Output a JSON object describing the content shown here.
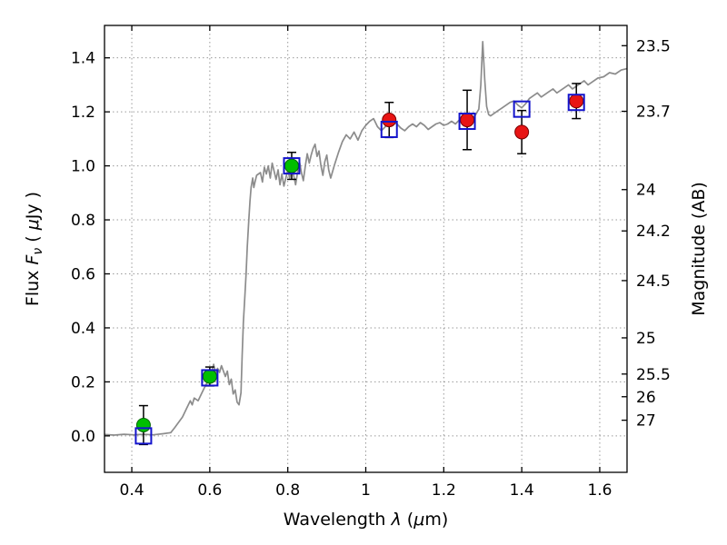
{
  "chart_data": {
    "type": "line",
    "title": "",
    "xlabel_parts": [
      {
        "text": "Wavelength  ",
        "italic": false
      },
      {
        "text": "λ",
        "italic": true
      },
      {
        "text": " (",
        "italic": false
      },
      {
        "text": "μ",
        "italic": true
      },
      {
        "text": "m)",
        "italic": false
      }
    ],
    "ylabel_left_parts": [
      {
        "text": "Flux  ",
        "italic": false
      },
      {
        "text": "F",
        "italic": true
      },
      {
        "text": "ν",
        "italic": true,
        "sub": true
      },
      {
        "text": "  ( ",
        "italic": false
      },
      {
        "text": "μ",
        "italic": true
      },
      {
        "text": "Jy )",
        "italic": false
      }
    ],
    "ylabel_right": "Magnitude (AB)",
    "xlim": [
      0.33,
      1.67
    ],
    "ylim": [
      -0.135,
      1.52
    ],
    "grid": true,
    "x_ticks": [
      {
        "v": 0.4,
        "label": "0.4"
      },
      {
        "v": 0.6,
        "label": "0.6"
      },
      {
        "v": 0.8,
        "label": "0.8"
      },
      {
        "v": 1.0,
        "label": "1"
      },
      {
        "v": 1.2,
        "label": "1.2"
      },
      {
        "v": 1.4,
        "label": "1.4"
      },
      {
        "v": 1.6,
        "label": "1.6"
      }
    ],
    "y_ticks_left": [
      {
        "v": 0.0,
        "label": "0.0"
      },
      {
        "v": 0.2,
        "label": "0.2"
      },
      {
        "v": 0.4,
        "label": "0.4"
      },
      {
        "v": 0.6,
        "label": "0.6"
      },
      {
        "v": 0.8,
        "label": "0.8"
      },
      {
        "v": 1.0,
        "label": "1.0"
      },
      {
        "v": 1.2,
        "label": "1.2"
      },
      {
        "v": 1.4,
        "label": "1.4"
      }
    ],
    "y_ticks_right": [
      {
        "label": "23.5",
        "flux": 1.445
      },
      {
        "label": "23.7",
        "flux": 1.202
      },
      {
        "label": "24",
        "flux": 0.912
      },
      {
        "label": "24.2",
        "flux": 0.759
      },
      {
        "label": "24.5",
        "flux": 0.575
      },
      {
        "label": "25",
        "flux": 0.363
      },
      {
        "label": "25.5",
        "flux": 0.229
      },
      {
        "label": "26",
        "flux": 0.145
      },
      {
        "label": "27",
        "flux": 0.058
      }
    ],
    "colors": {
      "spectrum": "#8c8c8c",
      "green_marker": "#00bf00",
      "green_edge": "#006400",
      "red_marker": "#e81414",
      "red_edge": "#7a0000",
      "blue_square": "#1414cc",
      "error_bar": "#000000",
      "grid": "#9a9a9a",
      "frame": "#000000"
    },
    "series": {
      "spectrum": {
        "name": "model-spectrum-line",
        "x": [
          0.33,
          0.355,
          0.38,
          0.405,
          0.43,
          0.455,
          0.48,
          0.5,
          0.51,
          0.52,
          0.53,
          0.54,
          0.55,
          0.555,
          0.56,
          0.57,
          0.58,
          0.59,
          0.6,
          0.605,
          0.61,
          0.615,
          0.62,
          0.625,
          0.63,
          0.64,
          0.645,
          0.65,
          0.655,
          0.66,
          0.665,
          0.67,
          0.675,
          0.68,
          0.683,
          0.686,
          0.69,
          0.693,
          0.696,
          0.7,
          0.703,
          0.706,
          0.71,
          0.713,
          0.716,
          0.72,
          0.73,
          0.735,
          0.74,
          0.745,
          0.75,
          0.755,
          0.76,
          0.77,
          0.775,
          0.78,
          0.785,
          0.79,
          0.8,
          0.805,
          0.81,
          0.815,
          0.82,
          0.825,
          0.83,
          0.835,
          0.84,
          0.845,
          0.85,
          0.855,
          0.86,
          0.865,
          0.87,
          0.875,
          0.88,
          0.885,
          0.89,
          0.895,
          0.9,
          0.905,
          0.91,
          0.92,
          0.93,
          0.94,
          0.95,
          0.96,
          0.97,
          0.98,
          0.99,
          1.0,
          1.01,
          1.02,
          1.03,
          1.04,
          1.05,
          1.06,
          1.07,
          1.08,
          1.09,
          1.1,
          1.11,
          1.12,
          1.13,
          1.14,
          1.15,
          1.16,
          1.17,
          1.18,
          1.19,
          1.2,
          1.21,
          1.22,
          1.23,
          1.24,
          1.25,
          1.26,
          1.27,
          1.28,
          1.29,
          1.295,
          1.3,
          1.305,
          1.31,
          1.315,
          1.32,
          1.33,
          1.34,
          1.35,
          1.36,
          1.37,
          1.38,
          1.39,
          1.4,
          1.41,
          1.42,
          1.43,
          1.44,
          1.45,
          1.46,
          1.47,
          1.48,
          1.49,
          1.5,
          1.51,
          1.52,
          1.53,
          1.54,
          1.55,
          1.56,
          1.57,
          1.58,
          1.595,
          1.61,
          1.625,
          1.64,
          1.655,
          1.67
        ],
        "y": [
          0.005,
          0.003,
          0.006,
          0.004,
          0.006,
          0.004,
          0.008,
          0.012,
          0.03,
          0.05,
          0.07,
          0.1,
          0.13,
          0.115,
          0.14,
          0.13,
          0.16,
          0.19,
          0.21,
          0.24,
          0.265,
          0.23,
          0.25,
          0.235,
          0.26,
          0.22,
          0.24,
          0.19,
          0.21,
          0.155,
          0.17,
          0.125,
          0.115,
          0.16,
          0.3,
          0.42,
          0.52,
          0.6,
          0.7,
          0.8,
          0.87,
          0.92,
          0.955,
          0.92,
          0.94,
          0.965,
          0.975,
          0.94,
          0.995,
          0.97,
          1.0,
          0.955,
          1.01,
          0.95,
          0.985,
          0.93,
          0.97,
          0.925,
          0.985,
          0.955,
          1.0,
          0.965,
          0.93,
          0.975,
          1.015,
          0.975,
          0.945,
          1.0,
          1.045,
          1.01,
          1.04,
          1.065,
          1.08,
          1.035,
          1.055,
          1.0,
          0.965,
          1.015,
          1.04,
          0.985,
          0.955,
          1.005,
          1.05,
          1.09,
          1.115,
          1.1,
          1.125,
          1.095,
          1.13,
          1.15,
          1.165,
          1.175,
          1.145,
          1.13,
          1.145,
          1.155,
          1.165,
          1.155,
          1.14,
          1.13,
          1.145,
          1.155,
          1.145,
          1.16,
          1.15,
          1.135,
          1.145,
          1.155,
          1.16,
          1.15,
          1.155,
          1.165,
          1.155,
          1.17,
          1.175,
          1.18,
          1.175,
          1.185,
          1.21,
          1.3,
          1.46,
          1.32,
          1.22,
          1.19,
          1.185,
          1.195,
          1.205,
          1.215,
          1.225,
          1.235,
          1.24,
          1.225,
          1.215,
          1.23,
          1.25,
          1.26,
          1.27,
          1.255,
          1.265,
          1.275,
          1.285,
          1.27,
          1.28,
          1.29,
          1.3,
          1.285,
          1.295,
          1.305,
          1.315,
          1.3,
          1.31,
          1.325,
          1.33,
          1.345,
          1.34,
          1.355,
          1.36
        ]
      },
      "green_circles": {
        "name": "green-filled-circles",
        "x": [
          0.43,
          0.6,
          0.81
        ],
        "y": [
          0.04,
          0.22,
          1.0
        ],
        "yerr": [
          0.072,
          0.035,
          0.05
        ]
      },
      "red_circles": {
        "name": "red-filled-circles",
        "x": [
          1.06,
          1.26,
          1.4,
          1.54
        ],
        "y": [
          1.17,
          1.17,
          1.125,
          1.24
        ],
        "yerr": [
          0.065,
          0.11,
          0.08,
          0.065
        ]
      },
      "blue_squares": {
        "name": "blue-open-squares",
        "x": [
          0.43,
          0.6,
          0.81,
          1.06,
          1.26,
          1.4,
          1.54
        ],
        "y": [
          0.0,
          0.215,
          1.0,
          1.135,
          1.165,
          1.21,
          1.235
        ]
      }
    }
  }
}
